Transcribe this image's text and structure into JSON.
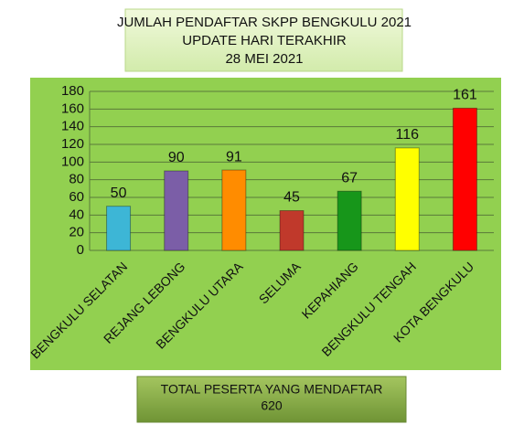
{
  "chart_data": {
    "type": "bar",
    "title": [
      "JUMLAH PENDAFTAR SKPP BENGKULU 2021",
      "UPDATE  HARI TERAKHIR",
      "28 MEI 2021"
    ],
    "categories": [
      "BENGKULU SELATAN",
      "REJANG LEBONG",
      "BENGKULU UTARA",
      "SELUMA",
      "KEPAHIANG",
      "BENGKULU TENGAH",
      "KOTA BENGKULU"
    ],
    "values": [
      50,
      90,
      91,
      45,
      67,
      116,
      161
    ],
    "colors": [
      "#3db6d6",
      "#7b5ea7",
      "#ff8c00",
      "#c0392b",
      "#17961a",
      "#ffff00",
      "#ff0000"
    ],
    "ylim": [
      0,
      180
    ],
    "yticks": [
      0,
      20,
      40,
      60,
      80,
      100,
      120,
      140,
      160,
      180
    ],
    "grid": true,
    "total_label": "TOTAL PESERTA YANG MENDAFTAR",
    "total_value": 620
  }
}
